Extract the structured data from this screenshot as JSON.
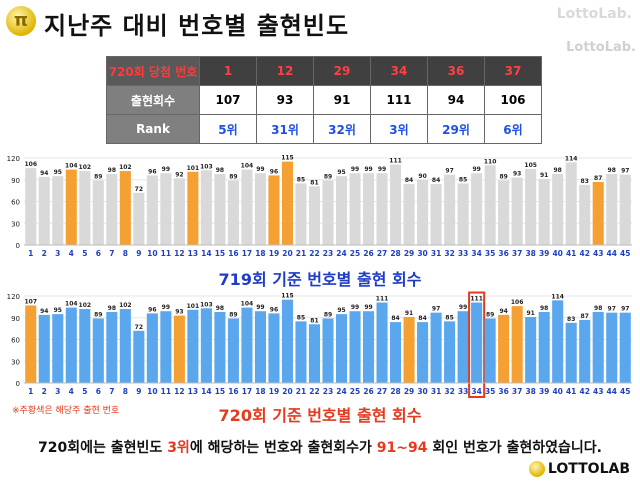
{
  "header": {
    "title": "지난주 대비 번호별 출현빈도",
    "watermark": "LottoLab.",
    "side_watermark": "LottoLab."
  },
  "table": {
    "row1_label": "720회 당첨 번호",
    "row2_label": "출현회수",
    "row3_label": "Rank",
    "numbers": [
      "1",
      "12",
      "29",
      "34",
      "36",
      "37"
    ],
    "counts": [
      "107",
      "93",
      "91",
      "111",
      "94",
      "106"
    ],
    "ranks": [
      "5위",
      "31위",
      "32위",
      "3위",
      "29위",
      "6위"
    ]
  },
  "chart_data": [
    {
      "type": "bar",
      "title": "719회 기준 번호별 출현 회수",
      "categories": [
        "1",
        "2",
        "3",
        "4",
        "5",
        "6",
        "7",
        "8",
        "9",
        "10",
        "11",
        "12",
        "13",
        "14",
        "15",
        "16",
        "17",
        "18",
        "19",
        "20",
        "21",
        "22",
        "23",
        "24",
        "25",
        "26",
        "27",
        "28",
        "29",
        "30",
        "31",
        "32",
        "33",
        "34",
        "35",
        "36",
        "37",
        "38",
        "39",
        "40",
        "41",
        "42",
        "43",
        "44",
        "45"
      ],
      "values": [
        106,
        94,
        95,
        104,
        102,
        89,
        98,
        102,
        72,
        96,
        99,
        92,
        101,
        103,
        98,
        89,
        104,
        99,
        96,
        115,
        85,
        81,
        89,
        95,
        99,
        99,
        99,
        111,
        84,
        90,
        84,
        97,
        85,
        99,
        110,
        89,
        93,
        105,
        91,
        98,
        114,
        83,
        87,
        98,
        97
      ],
      "highlighted": [
        "4",
        "8",
        "13",
        "19",
        "20",
        "43"
      ],
      "ylim": [
        0,
        120
      ],
      "yticks": [
        0,
        30,
        60,
        90,
        120
      ],
      "colors": {
        "normal": "#d9d9d9",
        "highlight": "#f5a033",
        "labels": "#1f3fbf"
      }
    },
    {
      "type": "bar",
      "title": "720회 기준 번호별 출현 회수",
      "categories": [
        "1",
        "2",
        "3",
        "4",
        "5",
        "6",
        "7",
        "8",
        "9",
        "10",
        "11",
        "12",
        "13",
        "14",
        "15",
        "16",
        "17",
        "18",
        "19",
        "20",
        "21",
        "22",
        "23",
        "24",
        "25",
        "26",
        "27",
        "28",
        "29",
        "30",
        "31",
        "32",
        "33",
        "34",
        "35",
        "36",
        "37",
        "38",
        "39",
        "40",
        "41",
        "42",
        "43",
        "44",
        "45"
      ],
      "values": [
        107,
        94,
        95,
        104,
        102,
        89,
        98,
        102,
        72,
        96,
        99,
        93,
        101,
        103,
        98,
        89,
        104,
        99,
        96,
        115,
        85,
        81,
        89,
        95,
        99,
        99,
        111,
        84,
        91,
        84,
        97,
        85,
        99,
        111,
        89,
        94,
        106,
        91,
        98,
        114,
        83,
        87,
        98,
        97,
        97
      ],
      "highlighted": [
        "1",
        "12",
        "29",
        "36",
        "37"
      ],
      "boxed": [
        "34"
      ],
      "ylim": [
        0,
        120
      ],
      "yticks": [
        0,
        30,
        60,
        90,
        120
      ],
      "colors": {
        "normal": "#5ba7ee",
        "highlight": "#f5a033",
        "box": "#e53a1e",
        "labels": "#1f3fbf"
      }
    }
  ],
  "footnote": "※주황색은 해당주 출현 번호",
  "summary": {
    "prefix": "720회에는 출현빈도 ",
    "rank": "3위",
    "middle": "에 해당하는 번호와 출현회수가 ",
    "range": "91~94",
    "suffix": " 회인 번호가 출현하였습니다."
  },
  "footer": {
    "brand": "LOTTOLAB"
  }
}
